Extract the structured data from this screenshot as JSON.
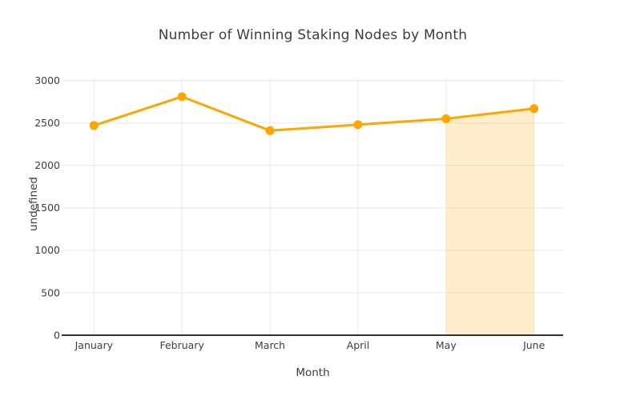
{
  "title": "Number of Winning Staking Nodes by Month",
  "chart_data": {
    "type": "line",
    "title": "Number of Winning Staking Nodes by Month",
    "xlabel": "Month",
    "ylabel": "undefined",
    "categories": [
      "January",
      "February",
      "March",
      "April",
      "May",
      "June"
    ],
    "values": [
      2470,
      2810,
      2410,
      2480,
      2550,
      2670
    ],
    "ylim": [
      0,
      3000
    ],
    "yticks": [
      0,
      500,
      1000,
      1500,
      2000,
      2500,
      3000
    ],
    "grid": true,
    "legend": "none",
    "highlight_region": {
      "from": "May",
      "to": "June"
    }
  },
  "colors": {
    "line": "#FFA500",
    "marker": "#FFA500",
    "highlight_fill": "rgba(255,165,0,0.2)",
    "gridline": "#e9e9e9",
    "axis_line": "#333333",
    "text": "#3d3d3d",
    "background": "#ffffff"
  }
}
